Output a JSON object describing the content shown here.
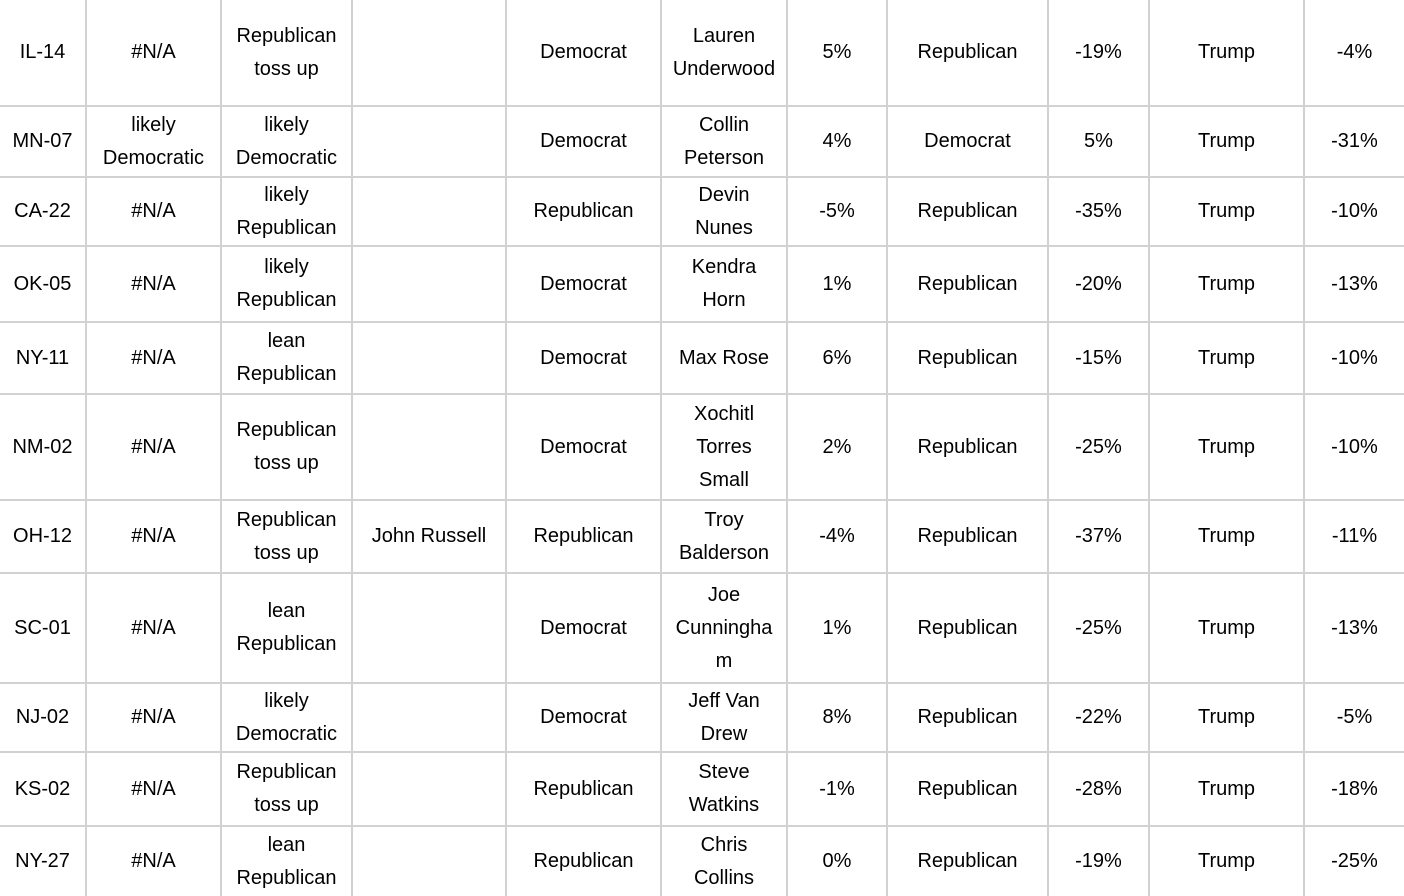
{
  "app": {
    "description": "Cropped spreadsheet region listing U.S. House districts with race ratings, candidates, parties and percentage margins"
  },
  "grid": {
    "colors": {
      "background": "#ffffff",
      "gridline": "#d2d2d2",
      "text": "#000000"
    },
    "rows": [
      {
        "cells": [
          "IL-14",
          "#N/A",
          "Republican toss up",
          "",
          "Democrat",
          "Lauren Underwood",
          "5%",
          "Republican",
          "-19%",
          "Trump",
          "-4%"
        ]
      },
      {
        "cells": [
          "MN-07",
          "likely Democratic",
          "likely Democratic",
          "",
          "Democrat",
          "Collin Peterson",
          "4%",
          "Democrat",
          "5%",
          "Trump",
          "-31%"
        ]
      },
      {
        "cells": [
          "CA-22",
          "#N/A",
          "likely Republican",
          "",
          "Republican",
          "Devin Nunes",
          "-5%",
          "Republican",
          "-35%",
          "Trump",
          "-10%"
        ]
      },
      {
        "cells": [
          "OK-05",
          "#N/A",
          "likely Republican",
          "",
          "Democrat",
          "Kendra Horn",
          "1%",
          "Republican",
          "-20%",
          "Trump",
          "-13%"
        ]
      },
      {
        "cells": [
          "NY-11",
          "#N/A",
          "lean Republican",
          "",
          "Democrat",
          "Max Rose",
          "6%",
          "Republican",
          "-15%",
          "Trump",
          "-10%"
        ]
      },
      {
        "cells": [
          "NM-02",
          "#N/A",
          "Republican toss up",
          "",
          "Democrat",
          "Xochitl Torres Small",
          "2%",
          "Republican",
          "-25%",
          "Trump",
          "-10%"
        ]
      },
      {
        "cells": [
          "OH-12",
          "#N/A",
          "Republican toss up",
          "John Russell",
          "Republican",
          "Troy Balderson",
          "-4%",
          "Republican",
          "-37%",
          "Trump",
          "-11%"
        ]
      },
      {
        "cells": [
          "SC-01",
          "#N/A",
          "lean Republican",
          "",
          "Democrat",
          "Joe Cunningham",
          "1%",
          "Republican",
          "-25%",
          "Trump",
          "-13%"
        ]
      },
      {
        "cells": [
          "NJ-02",
          "#N/A",
          "likely Democratic",
          "",
          "Democrat",
          "Jeff Van Drew",
          "8%",
          "Republican",
          "-22%",
          "Trump",
          "-5%"
        ]
      },
      {
        "cells": [
          "KS-02",
          "#N/A",
          "Republican toss up",
          "",
          "Republican",
          "Steve Watkins",
          "-1%",
          "Republican",
          "-28%",
          "Trump",
          "-18%"
        ]
      },
      {
        "cells": [
          "NY-27",
          "#N/A",
          "lean Republican",
          "",
          "Republican",
          "Chris Collins",
          "0%",
          "Republican",
          "-19%",
          "Trump",
          "-25%"
        ]
      }
    ]
  }
}
